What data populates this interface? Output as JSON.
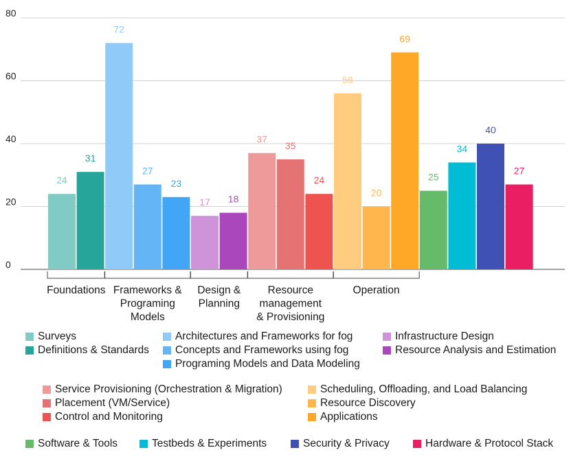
{
  "chart_data": {
    "type": "bar",
    "title": "",
    "xlabel": "",
    "ylabel": "",
    "ylim": [
      0,
      80
    ],
    "yticks": [
      0,
      20,
      40,
      60,
      80
    ],
    "grid": true,
    "legend": "bottom",
    "groups": [
      {
        "label": "Foundations",
        "bars": [
          0,
          1
        ]
      },
      {
        "label": "Frameworks & Programing Models",
        "label_lines": [
          "Frameworks &",
          "Programing",
          "Models"
        ],
        "bars": [
          2,
          3,
          4
        ]
      },
      {
        "label": "Design & Planning",
        "label_lines": [
          "Design &",
          "Planning"
        ],
        "bars": [
          5,
          6
        ]
      },
      {
        "label": "Resource management & Provisioning",
        "label_lines": [
          "Resource",
          "management",
          "& Provisioning"
        ],
        "bars": [
          7,
          8,
          9
        ]
      },
      {
        "label": "Operation",
        "bars": [
          10,
          11,
          12
        ]
      }
    ],
    "series": [
      {
        "name": "Surveys",
        "value": 24,
        "color": "#80CBC4"
      },
      {
        "name": "Definitions & Standards",
        "value": 31,
        "color": "#26A69A"
      },
      {
        "name": "Architectures and Frameworks for fog",
        "value": 72,
        "color": "#90CAF9"
      },
      {
        "name": "Concepts and Frameworks using fog",
        "value": 27,
        "color": "#64B5F6"
      },
      {
        "name": "Programing Models and Data Modeling",
        "value": 23,
        "color": "#42A5F5"
      },
      {
        "name": "Infrastructure Design",
        "value": 17,
        "color": "#CE93D8"
      },
      {
        "name": "Resource Analysis and Estimation",
        "value": 18,
        "color": "#AB47BC"
      },
      {
        "name": "Service Provisioning (Orchestration & Migration)",
        "value": 37,
        "color": "#EF9A9A"
      },
      {
        "name": "Placement (VM/Service)",
        "value": 35,
        "color": "#E57373"
      },
      {
        "name": "Control and Monitoring",
        "value": 24,
        "color": "#EF5350"
      },
      {
        "name": "Scheduling, Offloading, and Load Balancing",
        "value": 56,
        "color": "#FFCC80"
      },
      {
        "name": "Resource Discovery",
        "value": 20,
        "color": "#FFB74D"
      },
      {
        "name": "Applications",
        "value": 69,
        "color": "#FFA726"
      },
      {
        "name": "Software & Tools",
        "value": 25,
        "color": "#66BB6A"
      },
      {
        "name": "Testbeds & Experiments",
        "value": 34,
        "color": "#00BCD4"
      },
      {
        "name": "Security & Privacy",
        "value": 40,
        "color": "#3F51B5"
      },
      {
        "name": "Hardware & Protocol Stack",
        "value": 27,
        "color": "#E91E63"
      }
    ]
  }
}
